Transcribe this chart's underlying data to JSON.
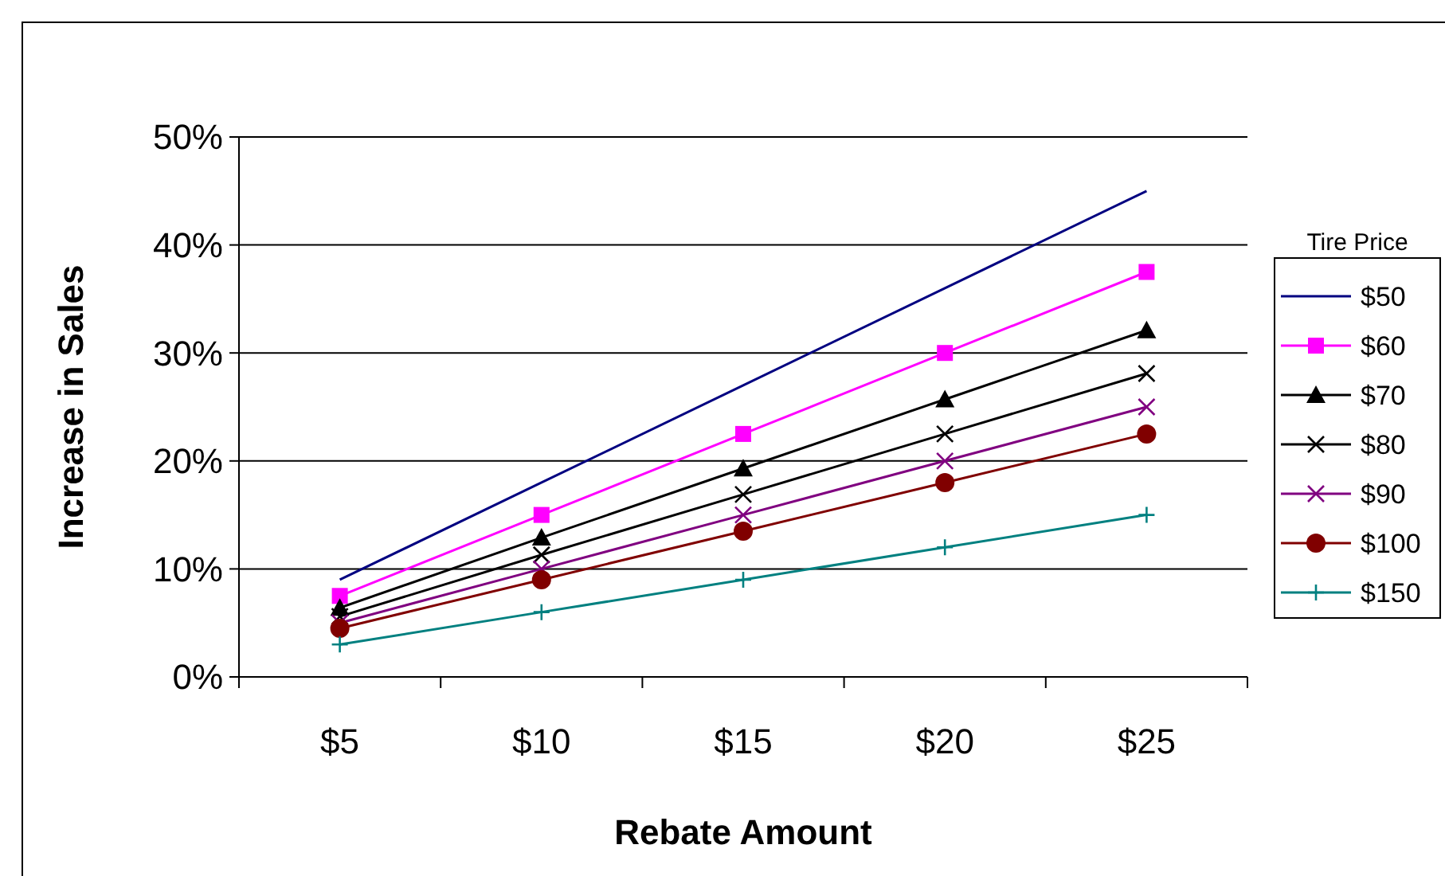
{
  "chart_data": {
    "type": "line",
    "xlabel": "Rebate Amount",
    "ylabel": "Increase in Sales",
    "legend_title": "Tire Price",
    "categories": [
      "$5",
      "$10",
      "$15",
      "$20",
      "$25"
    ],
    "series": [
      {
        "name": "$50",
        "color": "#000080",
        "marker": "none",
        "values": [
          9,
          18,
          27,
          36,
          45
        ]
      },
      {
        "name": "$60",
        "color": "#ff00ff",
        "marker": "square",
        "values": [
          7.5,
          15,
          22.5,
          30,
          37.5
        ]
      },
      {
        "name": "$70",
        "color": "#000000",
        "marker": "triangle",
        "values": [
          6.4,
          12.9,
          19.3,
          25.7,
          32.1
        ]
      },
      {
        "name": "$80",
        "color": "#000000",
        "marker": "cross",
        "values": [
          5.6,
          11.3,
          16.9,
          22.5,
          28.1
        ]
      },
      {
        "name": "$90",
        "color": "#800080",
        "marker": "cross",
        "values": [
          5,
          10,
          15,
          20,
          25
        ]
      },
      {
        "name": "$100",
        "color": "#800000",
        "marker": "circle",
        "values": [
          4.5,
          9,
          13.5,
          18,
          22.5
        ]
      },
      {
        "name": "$150",
        "color": "#008080",
        "marker": "plus",
        "values": [
          3,
          6,
          9,
          12,
          15
        ]
      }
    ],
    "ylim": [
      0,
      50
    ],
    "yticks": [
      {
        "value": 0,
        "label": "0%"
      },
      {
        "value": 10,
        "label": "10%"
      },
      {
        "value": 20,
        "label": "20%"
      },
      {
        "value": 30,
        "label": "30%"
      },
      {
        "value": 40,
        "label": "40%"
      },
      {
        "value": 50,
        "label": "50%"
      }
    ],
    "grid": "y",
    "legend": "right",
    "line_style": "solid"
  }
}
